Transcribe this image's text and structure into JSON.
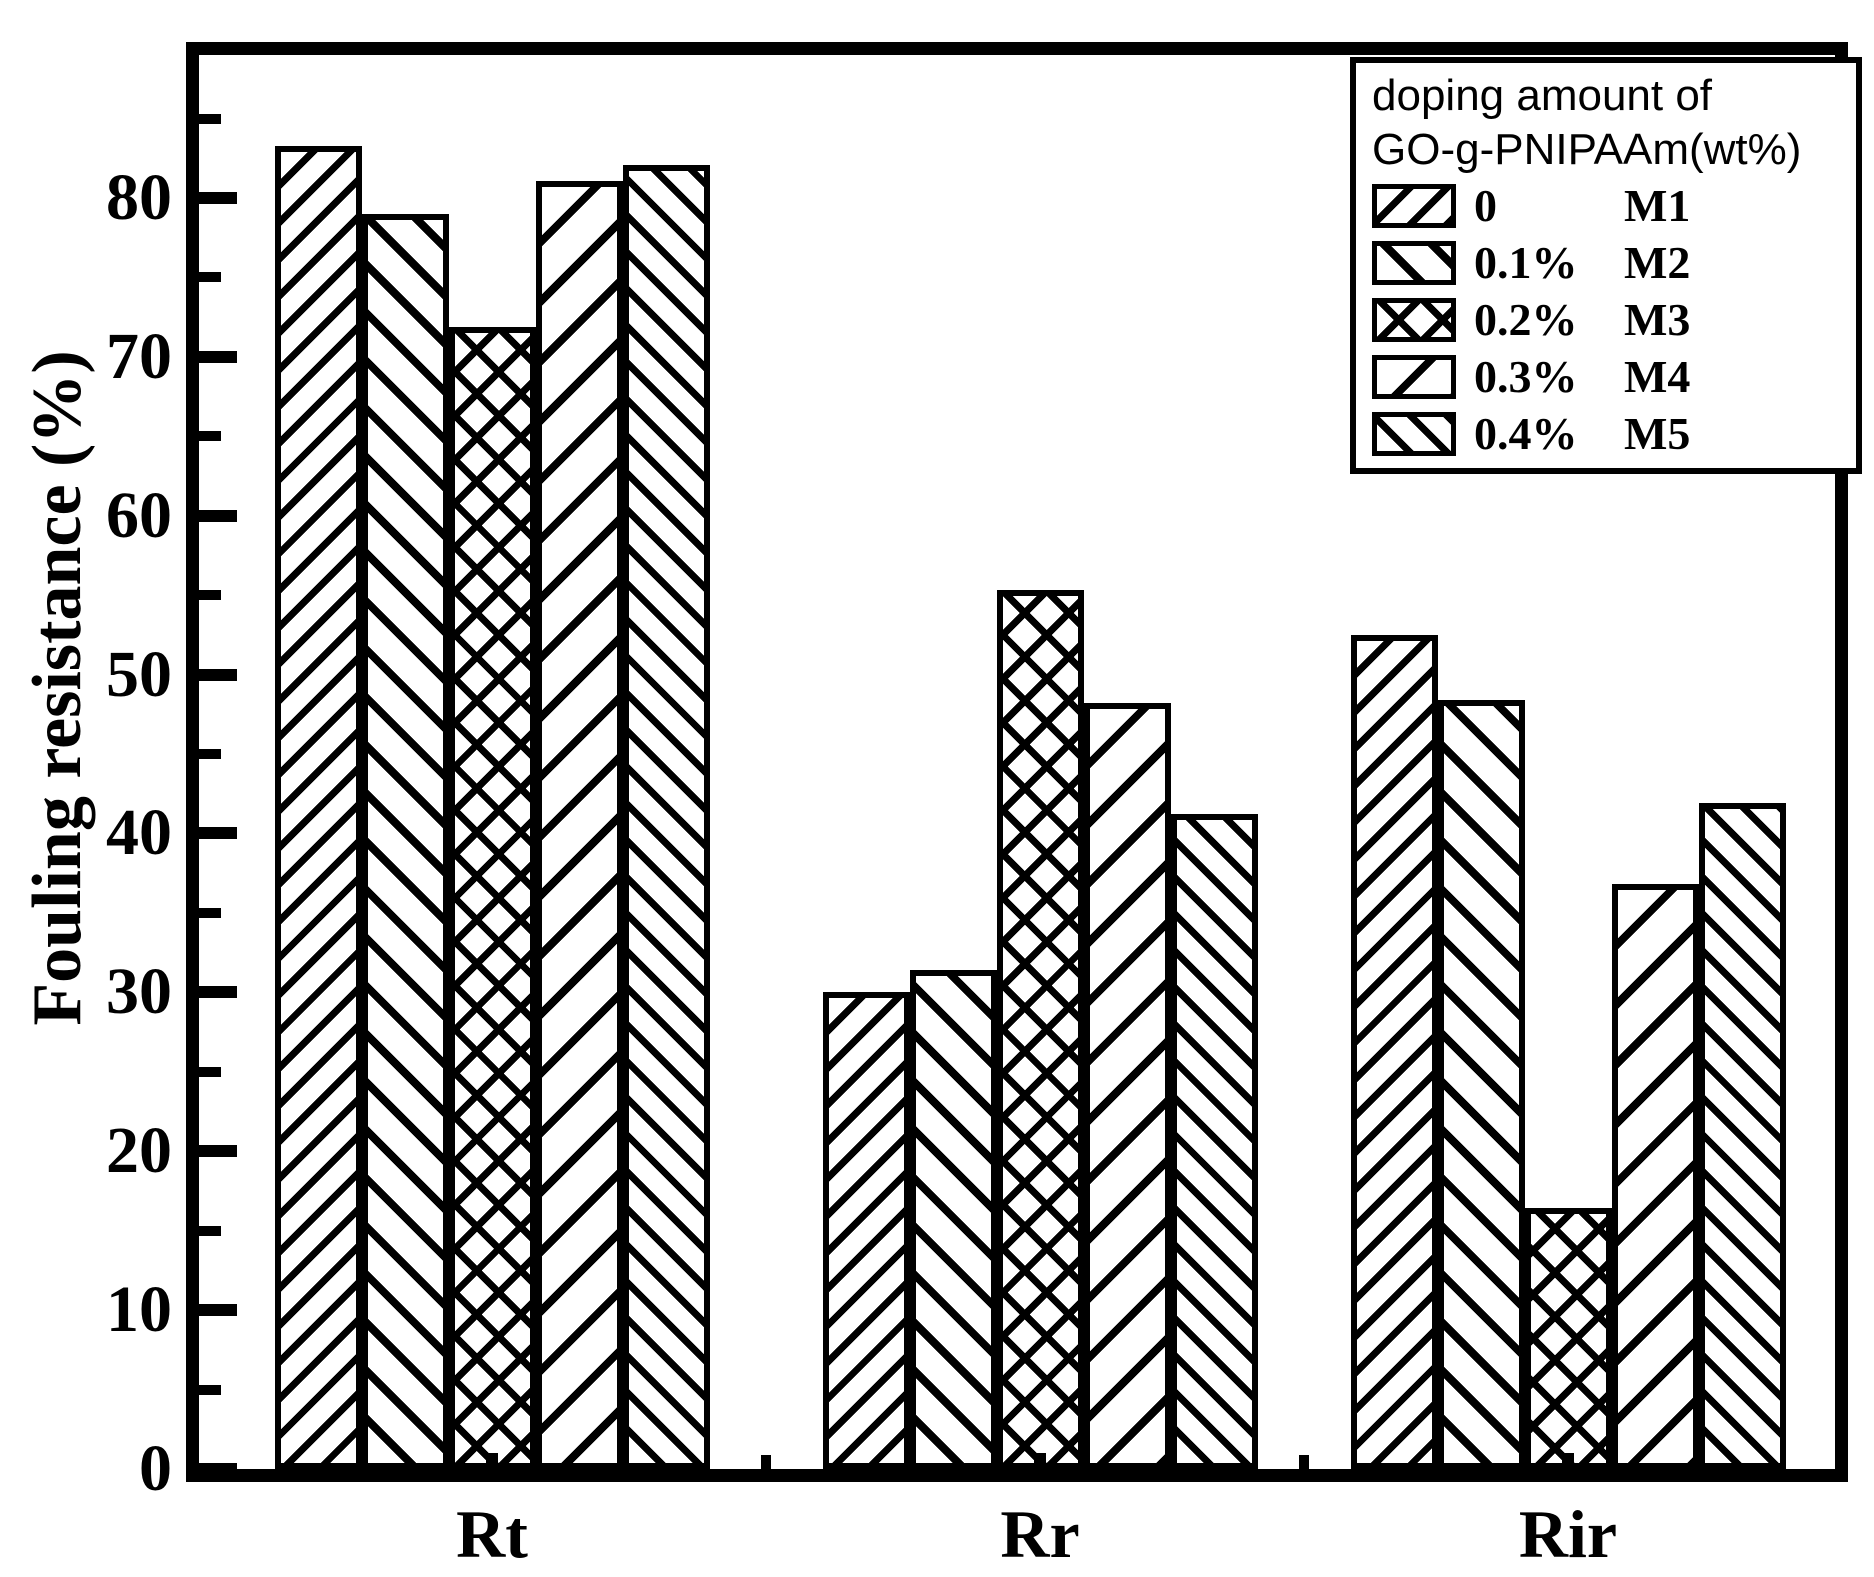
{
  "chart_data": {
    "type": "bar",
    "title": "",
    "xlabel": "",
    "ylabel": "Fouling resistance (%)",
    "categories": [
      "Rt",
      "Rr",
      "Rir"
    ],
    "series": [
      {
        "doping": "0",
        "membrane": "M1",
        "hatch": "fwd-dense",
        "values": [
          83.3,
          30.0,
          52.5
        ]
      },
      {
        "doping": "0.1%",
        "membrane": "M2",
        "hatch": "back",
        "values": [
          79.0,
          31.4,
          48.4
        ]
      },
      {
        "doping": "0.2%",
        "membrane": "M3",
        "hatch": "cross",
        "values": [
          71.9,
          55.3,
          16.4
        ]
      },
      {
        "doping": "0.3%",
        "membrane": "M4",
        "hatch": "fwd",
        "values": [
          81.1,
          48.2,
          36.8
        ]
      },
      {
        "doping": "0.4%",
        "membrane": "M5",
        "hatch": "back-dense",
        "values": [
          82.1,
          41.2,
          41.9
        ]
      }
    ],
    "ylim": [
      0,
      89
    ],
    "yticks_major": [
      0,
      10,
      20,
      30,
      40,
      50,
      60,
      70,
      80
    ],
    "yticks_minor": [
      5,
      15,
      25,
      35,
      45,
      55,
      65,
      75,
      85
    ],
    "grid": false,
    "legend": {
      "position": "top-right",
      "title_line1": "doping amount of",
      "title_line2": "GO-g-PNIPAAm(wt%)"
    },
    "colors": {
      "background": "#ffffff",
      "bar_fill": "#ffffff",
      "hatch_and_frame": "#000000"
    }
  }
}
